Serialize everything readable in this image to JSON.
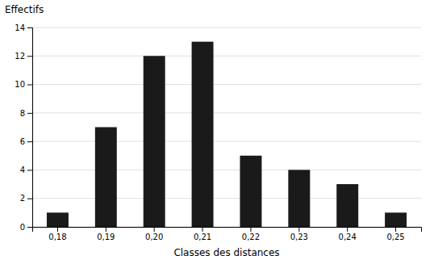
{
  "chart_data": {
    "type": "bar",
    "categories": [
      "0,18",
      "0,19",
      "0,20",
      "0,21",
      "0,22",
      "0,23",
      "0,24",
      "0,25"
    ],
    "values": [
      1,
      7,
      12,
      13,
      5,
      4,
      3,
      1
    ],
    "color": "#1a1a1a",
    "xlabel": "Classes des distances",
    "ylabel": "Effectifs",
    "ylim": [
      0,
      14
    ],
    "yticks": [
      0,
      2,
      4,
      6,
      8,
      10,
      12,
      14
    ],
    "grid": true
  }
}
